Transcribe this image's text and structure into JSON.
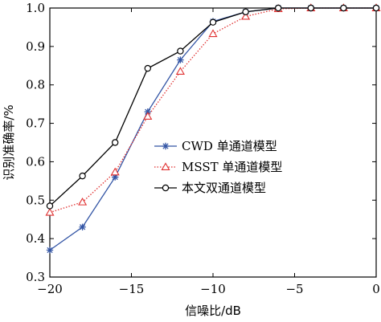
{
  "chart_data": {
    "type": "line",
    "xlabel": "信噪比/dB",
    "ylabel": "识别准确率/%",
    "xlim": [
      -20,
      0
    ],
    "ylim": [
      0.3,
      1.0
    ],
    "xticks": [
      "−20",
      "−15",
      "−10",
      "−5",
      "0"
    ],
    "xtick_values": [
      -20,
      -15,
      -10,
      -5,
      0
    ],
    "yticks": [
      "0.3",
      "0.4",
      "0.5",
      "0.6",
      "0.7",
      "0.8",
      "0.9",
      "1.0"
    ],
    "ytick_values": [
      0.3,
      0.4,
      0.5,
      0.6,
      0.7,
      0.8,
      0.9,
      1.0
    ],
    "grid": false,
    "legend_position": "center-right",
    "x": [
      -20,
      -18,
      -16,
      -14,
      -12,
      -10,
      -8,
      -6,
      -4,
      -2,
      0
    ],
    "series": [
      {
        "name": "CWD 单通道模型",
        "values": [
          0.37,
          0.43,
          0.56,
          0.73,
          0.865,
          0.965,
          0.99,
          1.0,
          1.0,
          1.0,
          1.0
        ],
        "color": "#3355a5",
        "marker": "asterisk",
        "line_style": "solid"
      },
      {
        "name": "MSST 单通道模型",
        "values": [
          0.468,
          0.495,
          0.573,
          0.718,
          0.835,
          0.933,
          0.978,
          0.998,
          1.0,
          1.0,
          1.0
        ],
        "color": "#e03030",
        "marker": "triangle",
        "line_style": "dotted"
      },
      {
        "name": "本文双通道模型",
        "values": [
          0.485,
          0.563,
          0.65,
          0.843,
          0.888,
          0.963,
          0.99,
          1.0,
          1.0,
          1.0,
          1.0
        ],
        "color": "#000000",
        "marker": "circle",
        "line_style": "solid"
      }
    ]
  }
}
